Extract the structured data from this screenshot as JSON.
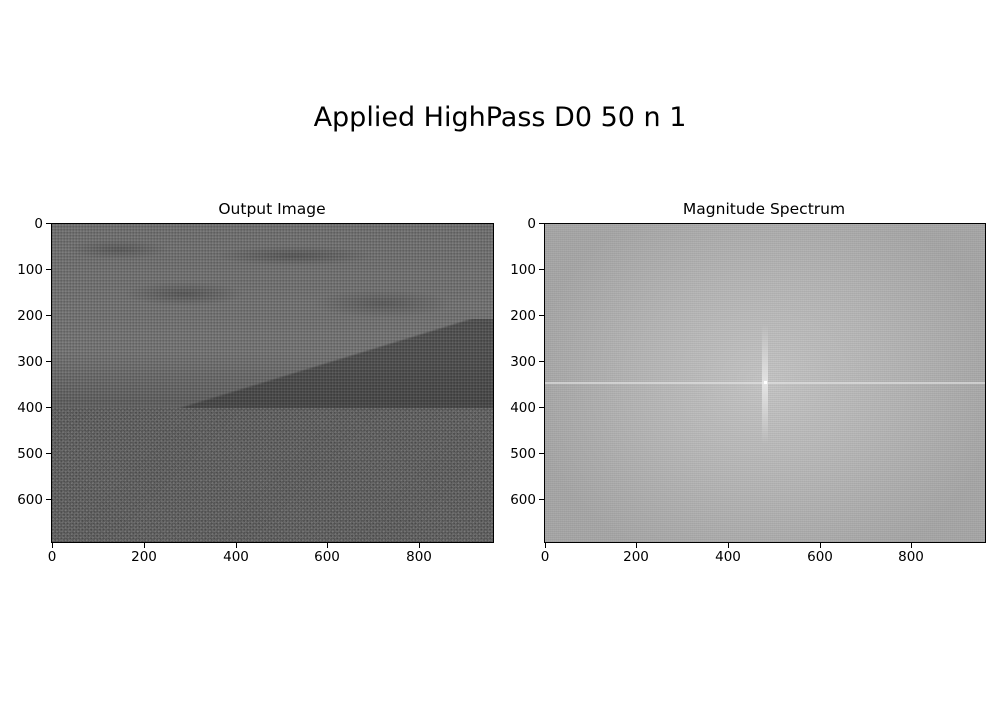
{
  "figure": {
    "suptitle": "Applied HighPass D0 50 n 1"
  },
  "panels": [
    {
      "title": "Output Image",
      "image_description_icon": "filtered-landscape-image",
      "x_ticks": [
        "0",
        "200",
        "400",
        "600",
        "800"
      ],
      "y_ticks": [
        "0",
        "100",
        "200",
        "300",
        "400",
        "500",
        "600"
      ]
    },
    {
      "title": "Magnitude Spectrum",
      "image_description_icon": "fft-magnitude-image",
      "x_ticks": [
        "0",
        "200",
        "400",
        "600",
        "800"
      ],
      "y_ticks": [
        "0",
        "100",
        "200",
        "300",
        "400",
        "500",
        "600"
      ]
    }
  ]
}
